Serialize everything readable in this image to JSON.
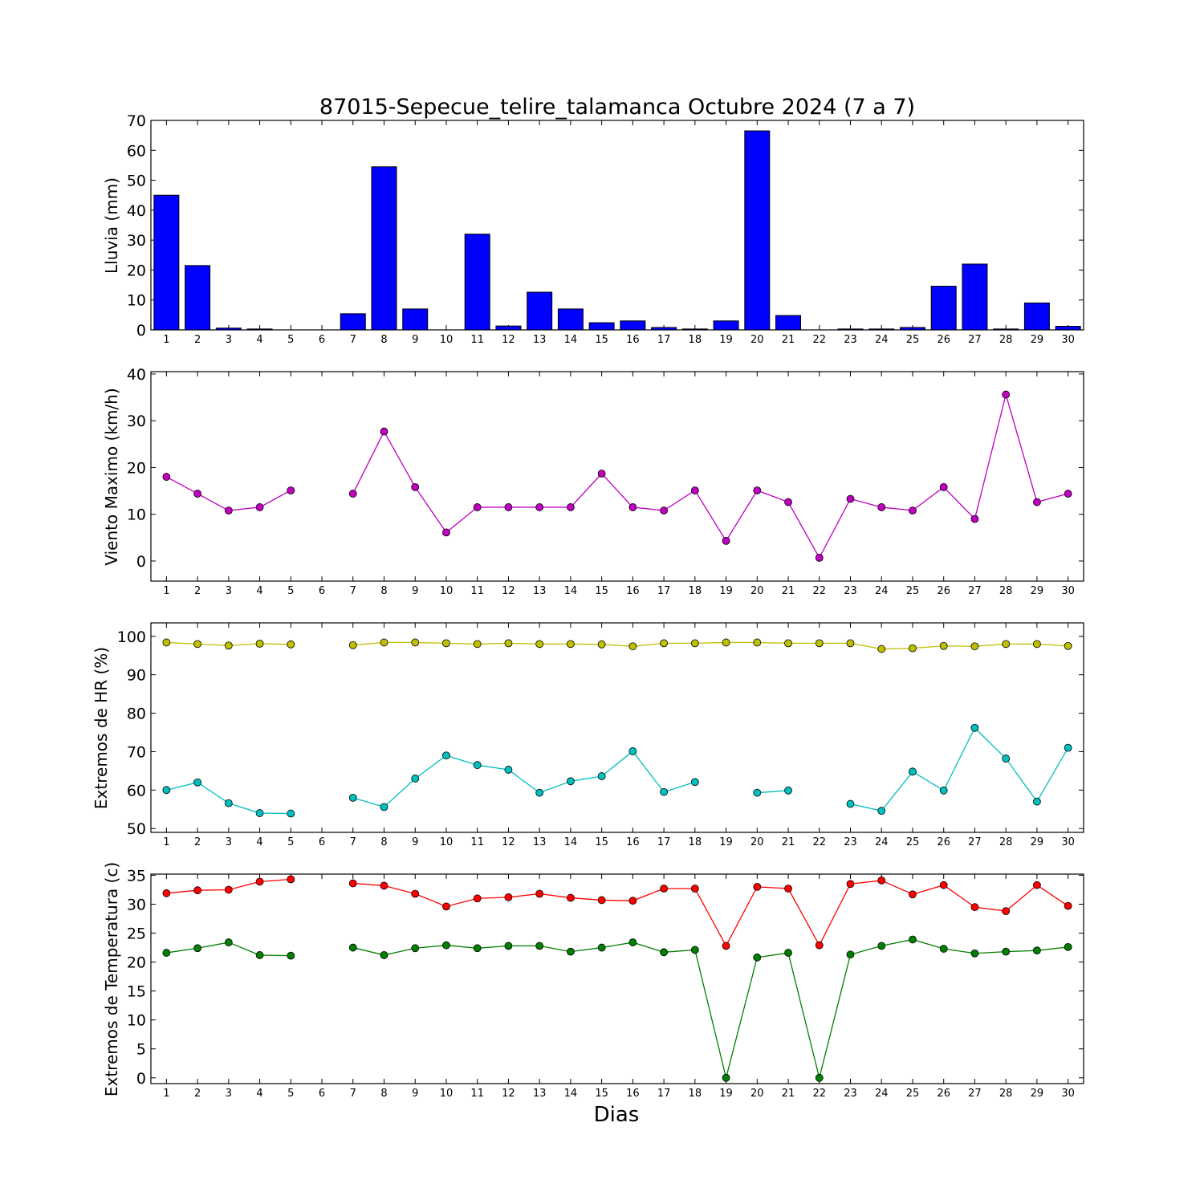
{
  "chart_data": [
    {
      "type": "bar",
      "title": "87015-Sepecue_telire_talamanca Octubre 2024  (7 a 7)",
      "ylabel": "Lluvia (mm)",
      "xlabel": "",
      "ylim": [
        0,
        70
      ],
      "yticks": [
        0,
        10,
        20,
        30,
        40,
        50,
        60,
        70
      ],
      "categories": [
        "1",
        "2",
        "3",
        "4",
        "5",
        "6",
        "7",
        "8",
        "9",
        "10",
        "11",
        "12",
        "13",
        "14",
        "15",
        "16",
        "17",
        "18",
        "19",
        "20",
        "21",
        "22",
        "23",
        "24",
        "25",
        "26",
        "27",
        "28",
        "29",
        "30"
      ],
      "series": [
        {
          "color": "#0000ff",
          "values": [
            45.0,
            21.5,
            0.6,
            0.3,
            0,
            0,
            5.4,
            54.5,
            7.0,
            0,
            32.0,
            1.3,
            12.6,
            7.0,
            2.4,
            3.0,
            0.8,
            0.3,
            3.0,
            66.5,
            4.8,
            0,
            0.3,
            0.3,
            0.8,
            14.6,
            22.0,
            0.3,
            9.0,
            1.2
          ]
        }
      ]
    },
    {
      "type": "line",
      "title": "",
      "ylabel": "Viento Maximo (km/h)",
      "xlabel": "",
      "ylim": [
        -4.3,
        40.5
      ],
      "yticks": [
        0,
        10,
        20,
        30,
        40
      ],
      "categories": [
        "1",
        "2",
        "3",
        "4",
        "5",
        "6",
        "7",
        "8",
        "9",
        "10",
        "11",
        "12",
        "13",
        "14",
        "15",
        "16",
        "17",
        "18",
        "19",
        "20",
        "21",
        "22",
        "23",
        "24",
        "25",
        "26",
        "27",
        "28",
        "29",
        "30"
      ],
      "series": [
        {
          "color": "#bf00bf",
          "values": [
            18.0,
            14.4,
            10.8,
            11.5,
            15.1,
            null,
            14.4,
            27.7,
            15.8,
            6.1,
            11.5,
            11.5,
            11.5,
            11.5,
            18.7,
            11.5,
            10.8,
            15.1,
            4.3,
            15.1,
            12.6,
            0.7,
            13.3,
            11.5,
            10.8,
            15.8,
            9.0,
            35.6,
            12.6,
            14.4
          ]
        }
      ]
    },
    {
      "type": "line",
      "title": "",
      "ylabel": "Extremos de HR (%)",
      "xlabel": "",
      "ylim": [
        49,
        103.5
      ],
      "yticks": [
        50,
        60,
        70,
        80,
        90,
        100
      ],
      "categories": [
        "1",
        "2",
        "3",
        "4",
        "5",
        "6",
        "7",
        "8",
        "9",
        "10",
        "11",
        "12",
        "13",
        "14",
        "15",
        "16",
        "17",
        "18",
        "19",
        "20",
        "21",
        "22",
        "23",
        "24",
        "25",
        "26",
        "27",
        "28",
        "29",
        "30"
      ],
      "series": [
        {
          "color": "#bfbf00",
          "values": [
            98.4,
            98.0,
            97.6,
            98.1,
            97.9,
            null,
            97.7,
            98.4,
            98.4,
            98.2,
            98.0,
            98.2,
            98.0,
            98.0,
            97.9,
            97.4,
            98.2,
            98.2,
            98.4,
            98.4,
            98.2,
            98.2,
            98.2,
            96.7,
            96.9,
            97.5,
            97.4,
            98.0,
            98.0,
            97.5
          ]
        },
        {
          "color": "#00bfbf",
          "values": [
            60.0,
            62.0,
            56.6,
            54.0,
            53.9,
            null,
            58.0,
            55.6,
            63.0,
            69.0,
            66.5,
            65.3,
            59.3,
            62.3,
            63.6,
            70.1,
            59.5,
            62.1,
            null,
            59.3,
            59.9,
            null,
            56.4,
            54.6,
            64.8,
            59.9,
            76.2,
            68.2,
            57.0,
            71.0
          ]
        }
      ]
    },
    {
      "type": "line",
      "title": "",
      "ylabel": "Extremos de Temperatura (c)",
      "xlabel": "Dias",
      "ylim": [
        -1,
        35.2
      ],
      "yticks": [
        0,
        5,
        10,
        15,
        20,
        25,
        30,
        35
      ],
      "categories": [
        "1",
        "2",
        "3",
        "4",
        "5",
        "6",
        "7",
        "8",
        "9",
        "10",
        "11",
        "12",
        "13",
        "14",
        "15",
        "16",
        "17",
        "18",
        "19",
        "20",
        "21",
        "22",
        "23",
        "24",
        "25",
        "26",
        "27",
        "28",
        "29",
        "30"
      ],
      "series": [
        {
          "color": "#ff0000",
          "values": [
            31.9,
            32.4,
            32.5,
            33.9,
            34.3,
            null,
            33.6,
            33.2,
            31.8,
            29.6,
            31.0,
            31.2,
            31.8,
            31.1,
            30.7,
            30.6,
            32.7,
            32.7,
            22.8,
            33.0,
            32.7,
            22.9,
            33.5,
            34.1,
            31.7,
            33.3,
            29.5,
            28.8,
            33.3,
            29.7
          ]
        },
        {
          "color": "#007f00",
          "values": [
            21.6,
            22.4,
            23.4,
            21.2,
            21.1,
            null,
            22.5,
            21.2,
            22.4,
            22.9,
            22.4,
            22.8,
            22.8,
            21.8,
            22.5,
            23.4,
            21.7,
            22.1,
            0.0,
            20.8,
            21.6,
            0.0,
            21.3,
            22.8,
            23.9,
            22.3,
            21.5,
            21.8,
            22.0,
            22.6
          ]
        }
      ]
    }
  ]
}
